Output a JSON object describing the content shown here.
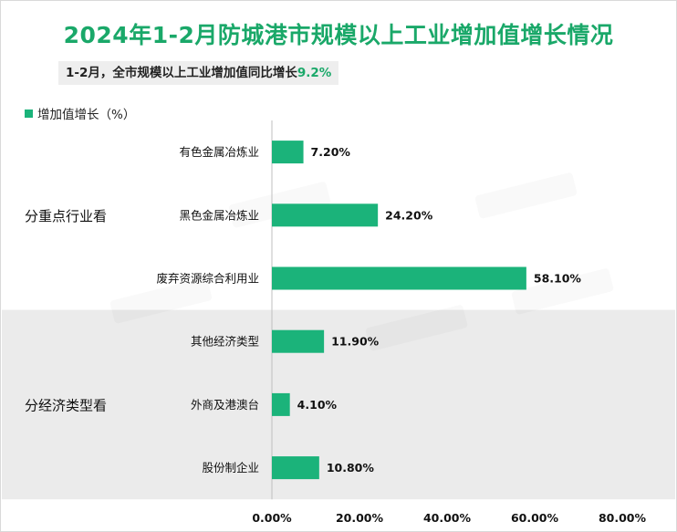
{
  "title": "2024年1-2月防城港市规模以上工业增加值增长情况",
  "subtitle": {
    "prefix": "1-2月，全市规模以上工业增加值同比增长",
    "value": "9.2%"
  },
  "colors": {
    "accent": "#1aa869",
    "bar": "#1bb37a",
    "group_band": "#ebebeb"
  },
  "chart_data": {
    "type": "bar",
    "orientation": "horizontal",
    "legend": "增加值增长（%）",
    "legend_position": "top-left",
    "groups": [
      {
        "label": "分重点行业看",
        "shaded": false,
        "categories": [
          "有色金属冶炼业",
          "黑色金属冶炼业",
          "废弃资源综合利用业"
        ],
        "values": [
          7.2,
          24.2,
          58.1
        ],
        "value_labels": [
          "7.20%",
          "24.20%",
          "58.10%"
        ]
      },
      {
        "label": "分经济类型看",
        "shaded": true,
        "categories": [
          "其他经济类型",
          "外商及港澳台",
          "股份制企业"
        ],
        "values": [
          11.9,
          4.1,
          10.8
        ],
        "value_labels": [
          "11.90%",
          "4.10%",
          "10.80%"
        ]
      }
    ],
    "xlim": [
      0,
      80
    ],
    "xticks": [
      "0.00%",
      "20.00%",
      "40.00%",
      "60.00%",
      "80.00%"
    ],
    "grid": false
  }
}
